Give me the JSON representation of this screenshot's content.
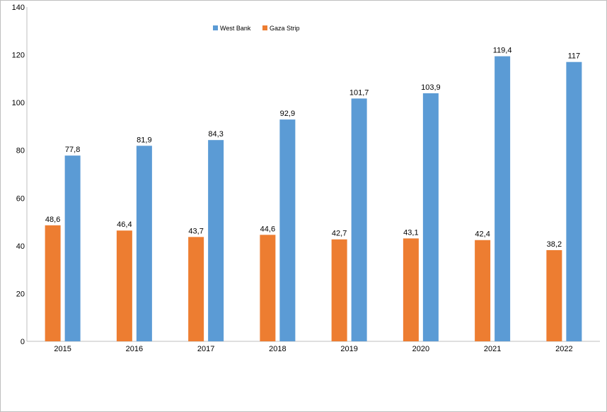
{
  "chart_data": {
    "type": "bar",
    "title": "",
    "xlabel": "",
    "ylabel": "",
    "categories": [
      "2015",
      "2016",
      "2017",
      "2018",
      "2019",
      "2020",
      "2021",
      "2022"
    ],
    "series": [
      {
        "name": "Gaza Strip",
        "color": "#ed7d31",
        "values": [
          48.6,
          46.4,
          43.7,
          44.6,
          42.7,
          43.1,
          42.4,
          38.2
        ],
        "labels": [
          "48,6",
          "46,4",
          "43,7",
          "44,6",
          "42,7",
          "43,1",
          "42,4",
          "38,2"
        ]
      },
      {
        "name": "West Bank",
        "color": "#5b9bd5",
        "values": [
          77.8,
          81.9,
          84.3,
          92.9,
          101.7,
          103.9,
          119.4,
          117
        ],
        "labels": [
          "77,8",
          "81,9",
          "84,3",
          "92,9",
          "101,7",
          "103,9",
          "119,4",
          "117"
        ]
      }
    ],
    "ylim": [
      0,
      140
    ],
    "yticks": [
      0,
      20,
      40,
      60,
      80,
      100,
      120,
      140
    ],
    "grid": false,
    "legend": {
      "position": "top-center",
      "order": [
        "West Bank",
        "Gaza Strip"
      ]
    }
  }
}
